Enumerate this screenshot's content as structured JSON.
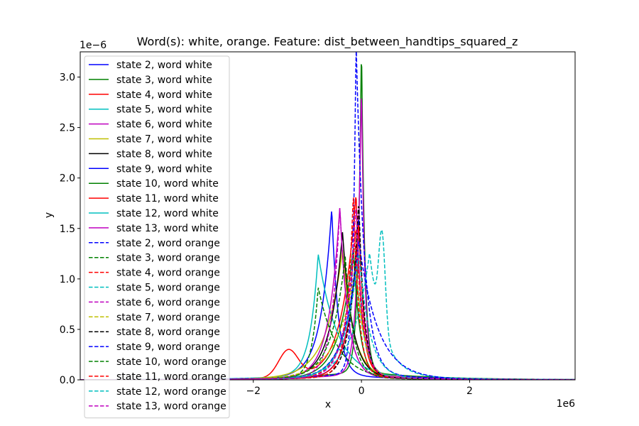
{
  "chart_data": {
    "type": "line",
    "title": "Word(s): white, orange. Feature: dist_between_handtips_squared_z",
    "xlabel": "x",
    "ylabel": "y",
    "x_offset_label": "1e6",
    "y_offset_label": "1e−6",
    "xlim": [
      -5.2,
      3.95
    ],
    "ylim": [
      0,
      3.25
    ],
    "xticks": [
      -2,
      0,
      2
    ],
    "xtick_labels": [
      "−2",
      "0",
      "2"
    ],
    "yticks": [
      0.0,
      0.5,
      1.0,
      1.5,
      2.0,
      2.5,
      3.0
    ],
    "ytick_labels": [
      "0.0",
      "0.5",
      "1.0",
      "1.5",
      "2.0",
      "2.5",
      "3.0"
    ],
    "grid": false,
    "legend_position": "upper left",
    "series": [
      {
        "name": "state 2, word white",
        "color": "#0000ff",
        "dash": "solid",
        "peak_x": -0.55,
        "peak_y": 1.65,
        "width_left": 0.2,
        "width_right": 0.12,
        "tail": 0.03
      },
      {
        "name": "state 3, word white",
        "color": "#008000",
        "dash": "solid",
        "peak_x": 0.0,
        "peak_y": 3.3,
        "width_left": 0.06,
        "width_right": 0.06,
        "tail": 0.025
      },
      {
        "name": "state 4, word white",
        "color": "#ff0000",
        "dash": "solid",
        "peak_x": -0.1,
        "peak_y": 1.8,
        "width_left": 0.25,
        "width_right": 0.1,
        "tail": 0.03,
        "bump_x": -1.35,
        "bump_y": 0.27,
        "bump_w": 0.18
      },
      {
        "name": "state 5, word white",
        "color": "#00bfbf",
        "dash": "solid",
        "peak_x": -0.8,
        "peak_y": 1.2,
        "width_left": 0.15,
        "width_right": 0.35,
        "tail": 0.04
      },
      {
        "name": "state 6, word white",
        "color": "#bf00bf",
        "dash": "solid",
        "peak_x": 0.0,
        "peak_y": 2.9,
        "width_left": 0.08,
        "width_right": 0.06,
        "tail": 0.02
      },
      {
        "name": "state 7, word white",
        "color": "#bfbf00",
        "dash": "solid",
        "peak_x": -0.35,
        "peak_y": 1.25,
        "width_left": 0.3,
        "width_right": 0.2,
        "tail": 0.03
      },
      {
        "name": "state 8, word white",
        "color": "#000000",
        "dash": "solid",
        "peak_x": -0.35,
        "peak_y": 1.43,
        "width_left": 0.22,
        "width_right": 0.18,
        "tail": 0.025
      },
      {
        "name": "state 9, word white",
        "color": "#0000ff",
        "dash": "solid",
        "peak_x": -0.05,
        "peak_y": 1.6,
        "width_left": 0.18,
        "width_right": 0.1,
        "tail": 0.02
      },
      {
        "name": "state 10, word white",
        "color": "#008000",
        "dash": "solid",
        "peak_x": -0.15,
        "peak_y": 1.3,
        "width_left": 0.25,
        "width_right": 0.12,
        "tail": 0.02
      },
      {
        "name": "state 11, word white",
        "color": "#ff0000",
        "dash": "solid",
        "peak_x": -0.05,
        "peak_y": 1.55,
        "width_left": 0.18,
        "width_right": 0.1,
        "tail": 0.02
      },
      {
        "name": "state 12, word white",
        "color": "#00bfbf",
        "dash": "solid",
        "peak_x": -0.1,
        "peak_y": 1.1,
        "width_left": 0.25,
        "width_right": 0.15,
        "tail": 0.02
      },
      {
        "name": "state 13, word white",
        "color": "#bf00bf",
        "dash": "solid",
        "peak_x": -0.4,
        "peak_y": 1.68,
        "width_left": 0.2,
        "width_right": 0.15,
        "tail": 0.02
      },
      {
        "name": "state 2, word orange",
        "color": "#0000ff",
        "dash": "dashed",
        "peak_x": -0.1,
        "peak_y": 3.3,
        "width_left": 0.06,
        "width_right": 0.15,
        "tail": 0.02
      },
      {
        "name": "state 3, word orange",
        "color": "#008000",
        "dash": "dashed",
        "peak_x": -0.8,
        "peak_y": 0.9,
        "width_left": 0.12,
        "width_right": 0.35,
        "tail": 0.02
      },
      {
        "name": "state 4, word orange",
        "color": "#ff0000",
        "dash": "dashed",
        "peak_x": -0.1,
        "peak_y": 1.5,
        "width_left": 0.2,
        "width_right": 0.12,
        "tail": 0.02
      },
      {
        "name": "state 5, word orange",
        "color": "#00bfbf",
        "dash": "dashed",
        "peak_x": 0.15,
        "peak_y": 1.2,
        "width_left": 0.3,
        "width_right": 0.25,
        "tail": 0.05,
        "bump_x": 0.38,
        "bump_y": 0.95,
        "bump_w": 0.06
      },
      {
        "name": "state 6, word orange",
        "color": "#bf00bf",
        "dash": "dashed",
        "peak_x": -0.4,
        "peak_y": 1.68,
        "width_left": 0.15,
        "width_right": 0.15,
        "tail": 0.02
      },
      {
        "name": "state 7, word orange",
        "color": "#bfbf00",
        "dash": "dashed",
        "peak_x": -0.1,
        "peak_y": 1.1,
        "width_left": 0.35,
        "width_right": 0.15,
        "tail": 0.02
      },
      {
        "name": "state 8, word orange",
        "color": "#000000",
        "dash": "dashed",
        "peak_x": -0.05,
        "peak_y": 1.75,
        "width_left": 0.15,
        "width_right": 0.1,
        "tail": 0.02
      },
      {
        "name": "state 9, word orange",
        "color": "#0000ff",
        "dash": "dashed",
        "peak_x": -0.05,
        "peak_y": 1.35,
        "width_left": 0.25,
        "width_right": 0.35,
        "tail": 0.02
      },
      {
        "name": "state 10, word orange",
        "color": "#008000",
        "dash": "dashed",
        "peak_x": -0.3,
        "peak_y": 1.2,
        "width_left": 0.25,
        "width_right": 0.15,
        "tail": 0.02
      },
      {
        "name": "state 11, word orange",
        "color": "#ff0000",
        "dash": "dashed",
        "peak_x": -0.15,
        "peak_y": 1.82,
        "width_left": 0.12,
        "width_right": 0.1,
        "tail": 0.02
      },
      {
        "name": "state 12, word orange",
        "color": "#00bfbf",
        "dash": "dashed",
        "peak_x": -0.05,
        "peak_y": 1.25,
        "width_left": 0.25,
        "width_right": 0.2,
        "tail": 0.02
      },
      {
        "name": "state 13, word orange",
        "color": "#bf00bf",
        "dash": "dashed",
        "peak_x": -0.1,
        "peak_y": 1.7,
        "width_left": 0.18,
        "width_right": 0.12,
        "tail": 0.02
      }
    ]
  }
}
